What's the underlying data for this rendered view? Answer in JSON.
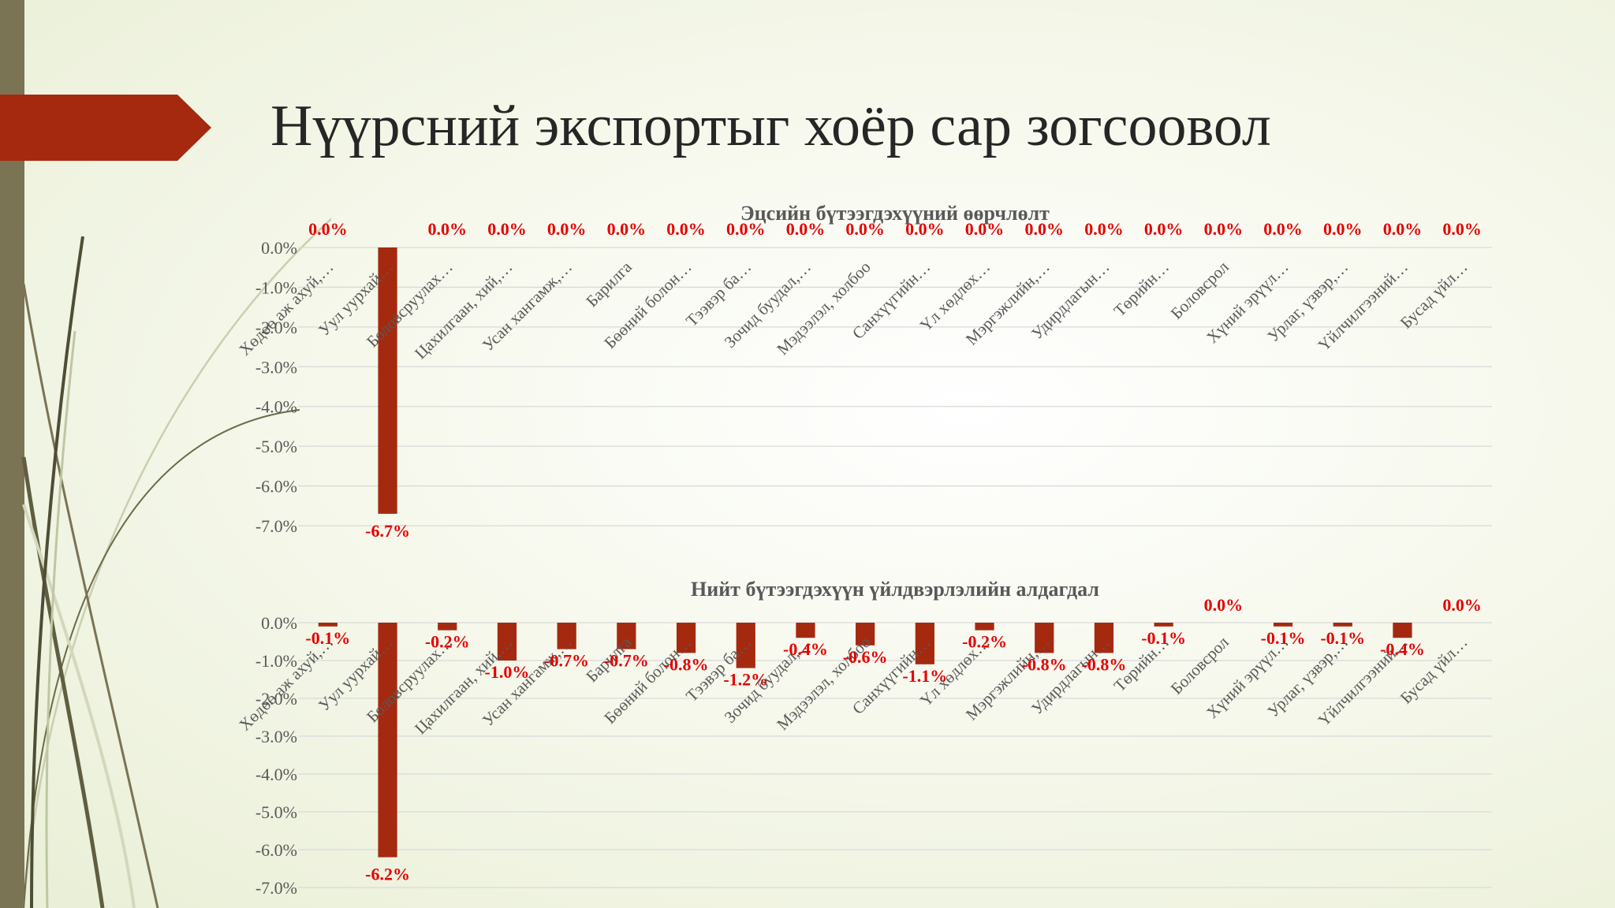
{
  "slide": {
    "title": "Нүүрсний экспортыг хоёр сар зогсоовол",
    "accent_color": "#a5290f",
    "side_bar_color": "#7a7354"
  },
  "chart_data": [
    {
      "type": "bar",
      "title": "Эцсийн бүтээгдэхүүний өөрчлөлт",
      "xlabel": "",
      "ylabel": "",
      "ylim": [
        -7.0,
        0.0
      ],
      "y_ticks": [
        "0.0%",
        "-1.0%",
        "-2.0%",
        "-3.0%",
        "-4.0%",
        "-5.0%",
        "-6.0%",
        "-7.0%"
      ],
      "grid": true,
      "legend": "none",
      "bar_color": "#a5290f",
      "label_color": "#e60000",
      "categories": [
        "Хөдөө аж ахуй,…",
        "Уул уурхай…",
        "Боловсруулах…",
        "Цахилгаан, хий,…",
        "Усан хангамж,…",
        "Барилга",
        "Бөөний болон…",
        "Тээвэр ба…",
        "Зочид буудал,…",
        "Мэдээлэл, холбоо",
        "Санхүүгийн…",
        "Үл хөдлөх…",
        "Мэргэжлийн,…",
        "Удирдлагын…",
        "Төрийн…",
        "Боловсрол",
        "Хүний эрүүл…",
        "Урлаг, үзвэр,…",
        "Үйлчилгээний…",
        "Бусад үйл…"
      ],
      "values": [
        0.0,
        -6.7,
        0.0,
        0.0,
        0.0,
        0.0,
        0.0,
        0.0,
        0.0,
        0.0,
        0.0,
        0.0,
        0.0,
        0.0,
        0.0,
        0.0,
        0.0,
        0.0,
        0.0,
        0.0
      ],
      "data_labels": [
        "0.0%",
        "-6.7%",
        "0.0%",
        "0.0%",
        "0.0%",
        "0.0%",
        "0.0%",
        "0.0%",
        "0.0%",
        "0.0%",
        "0.0%",
        "0.0%",
        "0.0%",
        "0.0%",
        "0.0%",
        "0.0%",
        "0.0%",
        "0.0%",
        "0.0%",
        "0.0%"
      ]
    },
    {
      "type": "bar",
      "title": "Нийт бүтээгдэхүүн үйлдвэрлэлийн алдагдал",
      "xlabel": "",
      "ylabel": "",
      "ylim": [
        -7.0,
        0.0
      ],
      "y_ticks": [
        "0.0%",
        "-1.0%",
        "-2.0%",
        "-3.0%",
        "-4.0%",
        "-5.0%",
        "-6.0%",
        "-7.0%"
      ],
      "grid": true,
      "legend": "none",
      "bar_color": "#a5290f",
      "label_color": "#e60000",
      "categories": [
        "Хөдөө аж ахуй,…",
        "Уул уурхай…",
        "Боловсруулах…",
        "Цахилгаан, хий,…",
        "Усан хангамж,…",
        "Барилга",
        "Бөөний болон…",
        "Тээвэр ба…",
        "Зочид буудал,…",
        "Мэдээлэл, холбоо",
        "Санхүүгийн…",
        "Үл хөдлөх…",
        "Мэргэжлийн,…",
        "Удирдлагын…",
        "Төрийн…",
        "Боловсрол",
        "Хүний эрүүл…",
        "Урлаг, үзвэр,…",
        "Үйлчилгээний…",
        "Бусад үйл…"
      ],
      "values": [
        -0.1,
        -6.2,
        -0.2,
        -1.0,
        -0.7,
        -0.7,
        -0.8,
        -1.2,
        -0.4,
        -0.6,
        -1.1,
        -0.2,
        -0.8,
        -0.8,
        -0.1,
        0.0,
        -0.1,
        -0.1,
        -0.4,
        0.0
      ],
      "data_labels": [
        "-0.1%",
        "-6.2%",
        "-0.2%",
        "-1.0%",
        "-0.7%",
        "-0.7%",
        "-0.8%",
        "-1.2%",
        "-0.4%",
        "-0.6%",
        "-1.1%",
        "-0.2%",
        "-0.8%",
        "-0.8%",
        "-0.1%",
        "0.0%",
        "-0.1%",
        "-0.1%",
        "-0.4%",
        "0.0%"
      ]
    }
  ]
}
